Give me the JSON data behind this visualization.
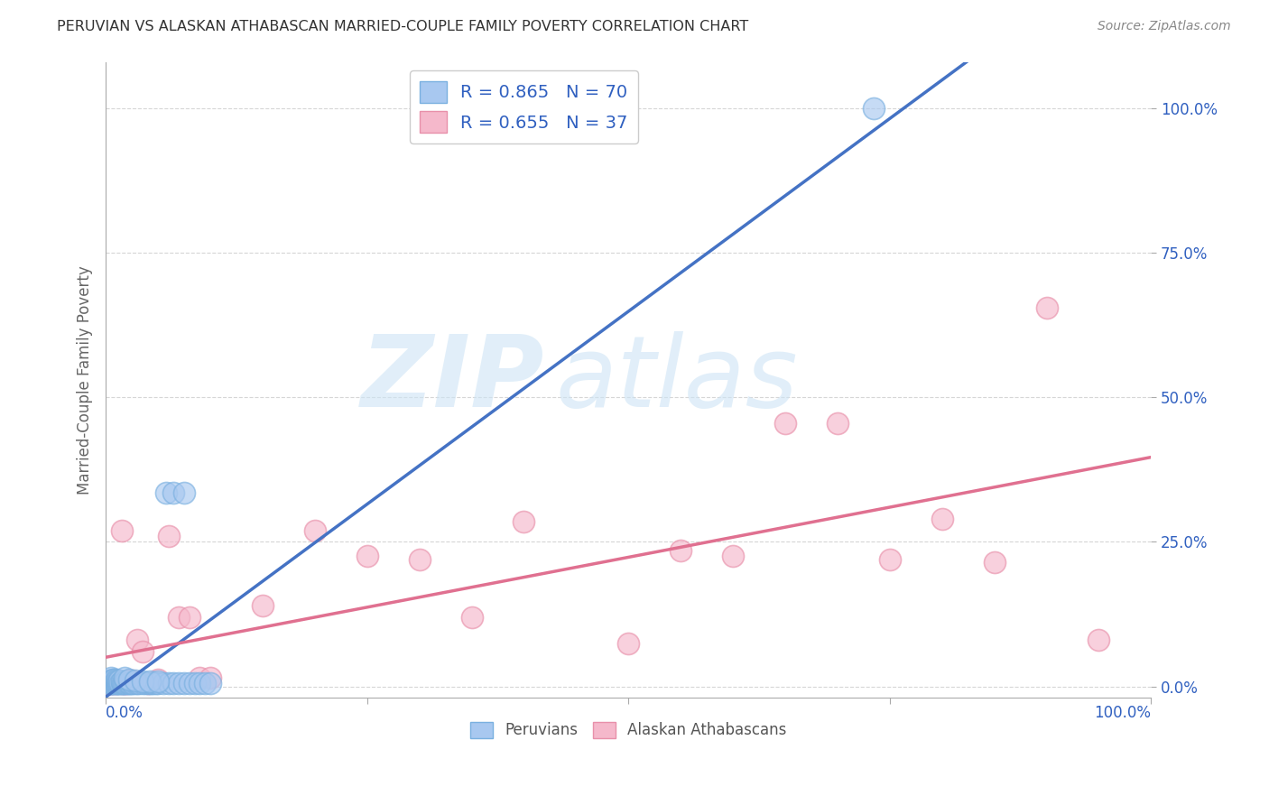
{
  "title": "PERUVIAN VS ALASKAN ATHABASCAN MARRIED-COUPLE FAMILY POVERTY CORRELATION CHART",
  "source": "Source: ZipAtlas.com",
  "ylabel": "Married-Couple Family Poverty",
  "xlim": [
    0,
    1
  ],
  "ylim": [
    -0.02,
    1.08
  ],
  "yticks": [
    0.0,
    0.25,
    0.5,
    0.75,
    1.0
  ],
  "ytick_labels": [
    "0.0%",
    "25.0%",
    "50.0%",
    "75.0%",
    "100.0%"
  ],
  "peruvian_color": "#a8c8f0",
  "peruvian_edge_color": "#7ab0e0",
  "alaskan_color": "#f5b8cb",
  "alaskan_edge_color": "#e890aa",
  "peruvian_line_color": "#4472C4",
  "alaskan_line_color": "#e07090",
  "R_peruvian": 0.865,
  "N_peruvian": 70,
  "R_alaskan": 0.655,
  "N_alaskan": 37,
  "legend_text_color": "#3060c0",
  "background_color": "#ffffff",
  "grid_color": "#cccccc",
  "peruvian_x": [
    0.002,
    0.003,
    0.004,
    0.004,
    0.005,
    0.005,
    0.005,
    0.006,
    0.006,
    0.007,
    0.007,
    0.007,
    0.008,
    0.008,
    0.008,
    0.009,
    0.009,
    0.01,
    0.01,
    0.01,
    0.011,
    0.011,
    0.012,
    0.012,
    0.013,
    0.013,
    0.014,
    0.015,
    0.015,
    0.016,
    0.017,
    0.018,
    0.019,
    0.02,
    0.021,
    0.022,
    0.023,
    0.025,
    0.026,
    0.028,
    0.03,
    0.032,
    0.035,
    0.038,
    0.04,
    0.042,
    0.044,
    0.046,
    0.048,
    0.05,
    0.055,
    0.06,
    0.065,
    0.07,
    0.075,
    0.08,
    0.085,
    0.09,
    0.095,
    0.1,
    0.018,
    0.022,
    0.028,
    0.035,
    0.042,
    0.05,
    0.058,
    0.065,
    0.075,
    0.735
  ],
  "peruvian_y": [
    0.01,
    0.005,
    0.005,
    0.01,
    0.005,
    0.01,
    0.015,
    0.005,
    0.01,
    0.005,
    0.008,
    0.012,
    0.005,
    0.008,
    0.012,
    0.005,
    0.008,
    0.005,
    0.008,
    0.012,
    0.005,
    0.01,
    0.005,
    0.008,
    0.005,
    0.01,
    0.005,
    0.005,
    0.008,
    0.005,
    0.005,
    0.005,
    0.008,
    0.005,
    0.005,
    0.005,
    0.005,
    0.005,
    0.005,
    0.005,
    0.005,
    0.005,
    0.005,
    0.005,
    0.005,
    0.005,
    0.005,
    0.005,
    0.005,
    0.005,
    0.005,
    0.005,
    0.005,
    0.005,
    0.005,
    0.005,
    0.005,
    0.005,
    0.005,
    0.005,
    0.015,
    0.012,
    0.01,
    0.008,
    0.008,
    0.008,
    0.335,
    0.335,
    0.335,
    1.0
  ],
  "alaskan_x": [
    0.002,
    0.004,
    0.006,
    0.008,
    0.01,
    0.012,
    0.015,
    0.015,
    0.018,
    0.02,
    0.022,
    0.025,
    0.03,
    0.035,
    0.04,
    0.05,
    0.06,
    0.07,
    0.08,
    0.09,
    0.1,
    0.15,
    0.2,
    0.25,
    0.3,
    0.35,
    0.4,
    0.5,
    0.55,
    0.6,
    0.65,
    0.7,
    0.75,
    0.8,
    0.85,
    0.9,
    0.95
  ],
  "alaskan_y": [
    0.005,
    0.005,
    0.005,
    0.005,
    0.005,
    0.01,
    0.005,
    0.27,
    0.005,
    0.005,
    0.01,
    0.01,
    0.08,
    0.06,
    0.005,
    0.012,
    0.26,
    0.12,
    0.12,
    0.015,
    0.015,
    0.14,
    0.27,
    0.225,
    0.22,
    0.12,
    0.285,
    0.075,
    0.235,
    0.225,
    0.455,
    0.455,
    0.22,
    0.29,
    0.215,
    0.655,
    0.08
  ]
}
